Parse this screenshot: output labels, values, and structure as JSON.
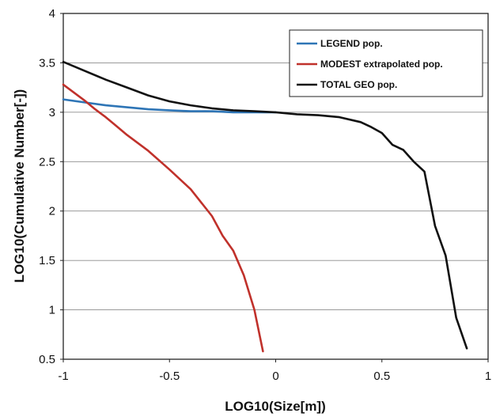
{
  "chart_data": {
    "type": "line",
    "title": "",
    "xlabel": "LOG10(Size[m])",
    "ylabel": "LOG10(Cumulative Number[-])",
    "xlim": [
      -1,
      1
    ],
    "ylim": [
      0.5,
      4
    ],
    "x_ticks": [
      -1,
      -0.5,
      0,
      0.5,
      1
    ],
    "x_tick_labels": [
      "-1",
      "-0.5",
      "0",
      "0.5",
      "1"
    ],
    "y_ticks": [
      0.5,
      1,
      1.5,
      2,
      2.5,
      3,
      3.5,
      4
    ],
    "y_tick_labels": [
      "0.5",
      "1",
      "1.5",
      "2",
      "2.5",
      "3",
      "3.5",
      "4"
    ],
    "grid": "horizontal major gridlines",
    "legend_position": "top-right",
    "series": [
      {
        "name": "LEGEND pop.",
        "color": "#2e75b6",
        "x": [
          -1,
          -0.9,
          -0.8,
          -0.7,
          -0.6,
          -0.5,
          -0.4,
          -0.3,
          -0.2,
          -0.1,
          0
        ],
        "y": [
          3.13,
          3.1,
          3.07,
          3.05,
          3.03,
          3.02,
          3.01,
          3.01,
          3.0,
          3.0,
          3.0
        ]
      },
      {
        "name": "MODEST extrapolated pop.",
        "color": "#c0312b",
        "x": [
          -1,
          -0.9,
          -0.85,
          -0.8,
          -0.75,
          -0.7,
          -0.65,
          -0.6,
          -0.5,
          -0.4,
          -0.3,
          -0.25,
          -0.2,
          -0.15,
          -0.1,
          -0.06
        ],
        "y": [
          3.28,
          3.12,
          3.03,
          2.95,
          2.86,
          2.77,
          2.69,
          2.61,
          2.42,
          2.22,
          1.95,
          1.75,
          1.6,
          1.35,
          1.0,
          0.58
        ]
      },
      {
        "name": "TOTAL GEO pop.",
        "color": "#111111",
        "x": [
          -1,
          -0.9,
          -0.8,
          -0.7,
          -0.6,
          -0.5,
          -0.4,
          -0.3,
          -0.2,
          -0.1,
          0,
          0.1,
          0.2,
          0.3,
          0.4,
          0.45,
          0.5,
          0.55,
          0.6,
          0.65,
          0.7,
          0.75,
          0.8,
          0.85,
          0.9
        ],
        "y": [
          3.51,
          3.42,
          3.33,
          3.25,
          3.17,
          3.11,
          3.07,
          3.04,
          3.02,
          3.01,
          3.0,
          2.98,
          2.97,
          2.95,
          2.9,
          2.85,
          2.79,
          2.67,
          2.62,
          2.5,
          2.4,
          1.85,
          1.55,
          0.92,
          0.61
        ]
      }
    ]
  }
}
